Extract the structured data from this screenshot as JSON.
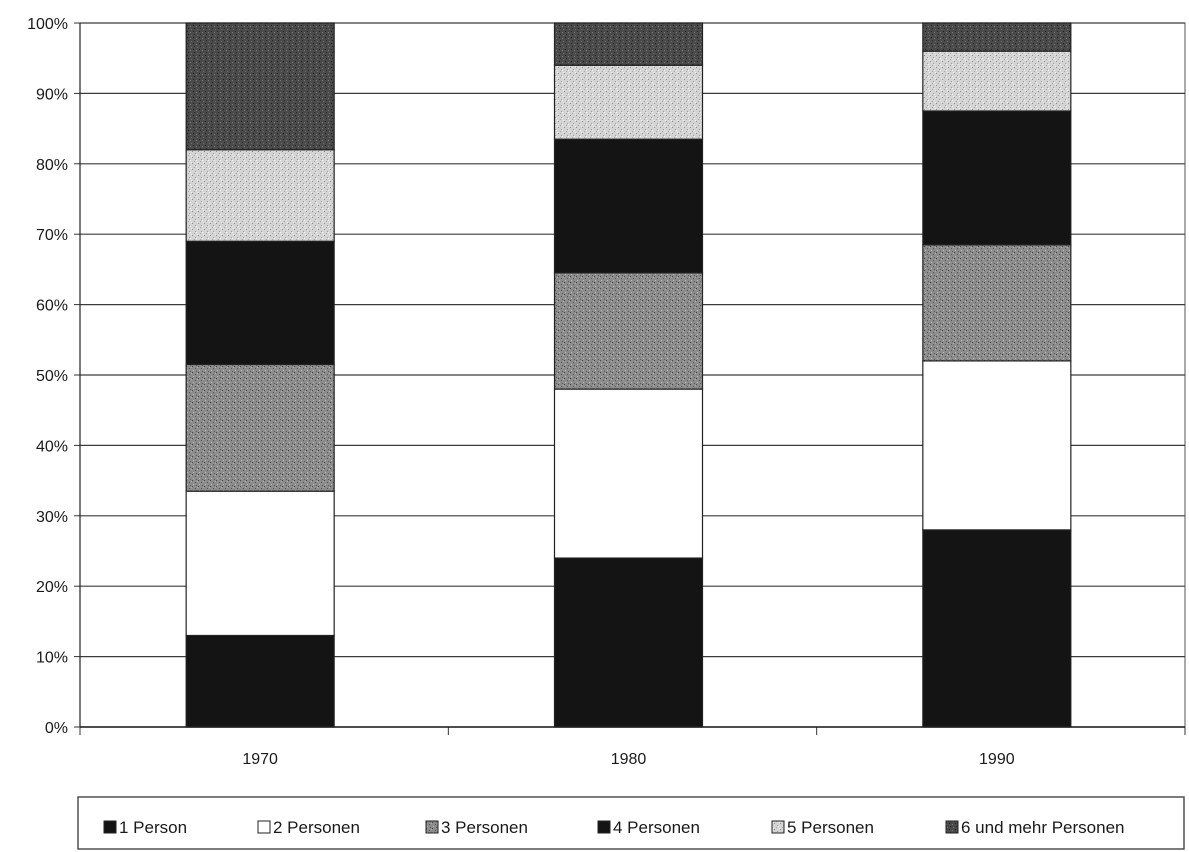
{
  "chart_data": {
    "type": "bar",
    "stacked": true,
    "percent_scale": true,
    "title": "",
    "xlabel": "",
    "ylabel": "",
    "categories": [
      "1970",
      "1980",
      "1990"
    ],
    "ylim": [
      0,
      100
    ],
    "yticks": [
      "0%",
      "10%",
      "20%",
      "30%",
      "40%",
      "50%",
      "60%",
      "70%",
      "80%",
      "90%",
      "100%"
    ],
    "grid": true,
    "legend_position": "bottom",
    "series": [
      {
        "name": "1 Person",
        "values": [
          13,
          24,
          28
        ],
        "color": "#141414",
        "pattern": "solid"
      },
      {
        "name": "2 Personen",
        "values": [
          20.5,
          24,
          24
        ],
        "color": "#ffffff",
        "pattern": "solid"
      },
      {
        "name": "3 Personen",
        "values": [
          18,
          16.5,
          16.5
        ],
        "color": "#8c8c8c",
        "pattern": "speckle-dark"
      },
      {
        "name": "4 Personen",
        "values": [
          17.5,
          19,
          19
        ],
        "color": "#141414",
        "pattern": "solid"
      },
      {
        "name": "5 Personen",
        "values": [
          13,
          10.5,
          8.5
        ],
        "color": "#cfcfcf",
        "pattern": "speckle-light"
      },
      {
        "name": "6 und mehr Personen",
        "values": [
          18,
          6,
          4
        ],
        "color": "#4a4a4a",
        "pattern": "speckle-darkest"
      }
    ]
  }
}
